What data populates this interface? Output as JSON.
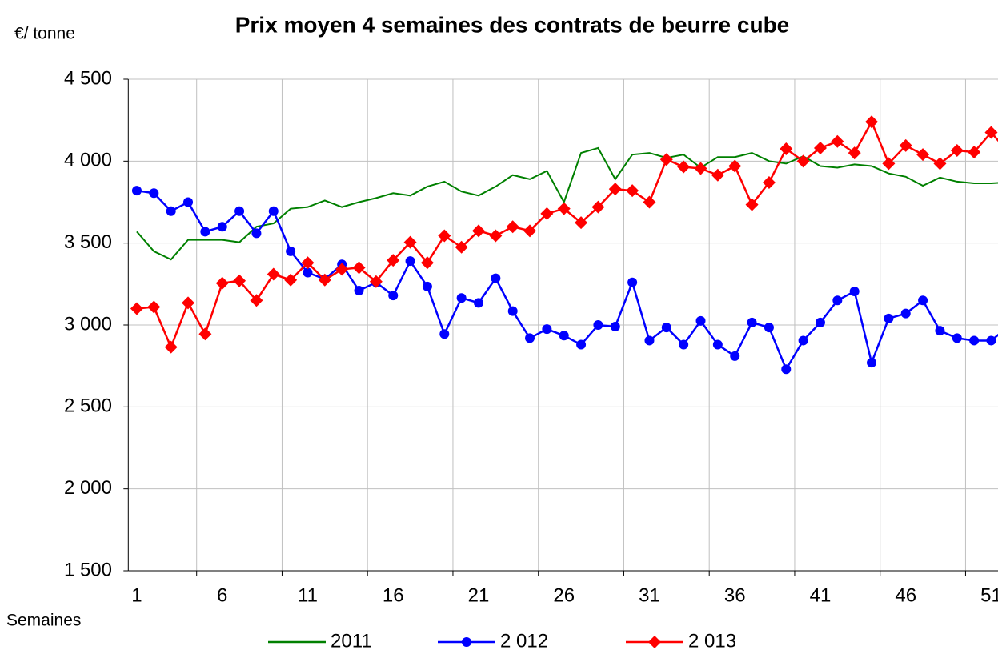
{
  "chart_data": {
    "type": "line",
    "title": "Prix moyen 4 semaines des contrats de beurre cube",
    "y_label": "€/ tonne",
    "x_label": "Semaines",
    "categories": [
      "1",
      null,
      null,
      null,
      null,
      "6",
      null,
      null,
      null,
      null,
      "11",
      null,
      null,
      null,
      null,
      "16",
      null,
      null,
      null,
      null,
      "21",
      null,
      null,
      null,
      null,
      "26",
      null,
      null,
      null,
      null,
      "31",
      null,
      null,
      null,
      null,
      "36",
      null,
      null,
      null,
      null,
      "41",
      null,
      null,
      null,
      null,
      "46",
      null,
      null,
      null,
      null,
      "51",
      null
    ],
    "ylim": [
      1500,
      4500
    ],
    "yticks": [
      {
        "value": 1500,
        "label": "1 500"
      },
      {
        "value": 2000,
        "label": "2 000"
      },
      {
        "value": 2500,
        "label": "2 500"
      },
      {
        "value": 3000,
        "label": "3 000"
      },
      {
        "value": 3500,
        "label": "3 500"
      },
      {
        "value": 4000,
        "label": "4 000"
      },
      {
        "value": 4500,
        "label": "4 500"
      }
    ],
    "grid": true,
    "legend": "bottom",
    "series": [
      {
        "name": "2011",
        "color": "#008000",
        "marker": "none",
        "values": [
          3570,
          3450,
          3400,
          3520,
          3520,
          3520,
          3505,
          3600,
          3620,
          3710,
          3720,
          3760,
          3720,
          3750,
          3775,
          3805,
          3790,
          3845,
          3875,
          3815,
          3790,
          3845,
          3915,
          3890,
          3940,
          3750,
          4050,
          4080,
          3890,
          4040,
          4050,
          4020,
          4040,
          3960,
          4025,
          4025,
          4050,
          4000,
          3985,
          4030,
          3970,
          3960,
          3980,
          3970,
          3925,
          3905,
          3850,
          3900,
          3875,
          3865,
          3865,
          3870
        ]
      },
      {
        "name": "2 012",
        "color": "#0000ff",
        "marker": "circle",
        "values": [
          3820,
          3805,
          3695,
          3750,
          3570,
          3600,
          3695,
          3560,
          3695,
          3450,
          3320,
          3280,
          3370,
          3210,
          3260,
          3180,
          3390,
          3235,
          2945,
          3165,
          3135,
          3285,
          3085,
          2920,
          2975,
          2935,
          2880,
          3000,
          2990,
          3260,
          2905,
          2985,
          2880,
          3025,
          2880,
          2810,
          3015,
          2985,
          2730,
          2905,
          3015,
          3150,
          3205,
          2770,
          3040,
          3070,
          3150,
          2965,
          2920,
          2905,
          2905,
          2990
        ]
      },
      {
        "name": "2 013",
        "color": "#ff0000",
        "marker": "diamond",
        "values": [
          3100,
          3110,
          2865,
          3135,
          2945,
          3255,
          3270,
          3150,
          3310,
          3275,
          3380,
          3275,
          3340,
          3350,
          3265,
          3395,
          3505,
          3380,
          3545,
          3475,
          3575,
          3545,
          3600,
          3575,
          3680,
          3710,
          3625,
          3720,
          3830,
          3820,
          3750,
          4010,
          3965,
          3955,
          3915,
          3970,
          3735,
          3870,
          4075,
          4000,
          4080,
          4120,
          4050,
          4240,
          3985,
          4095,
          4040,
          3985,
          4065,
          4055,
          4175,
          4055
        ]
      }
    ]
  }
}
